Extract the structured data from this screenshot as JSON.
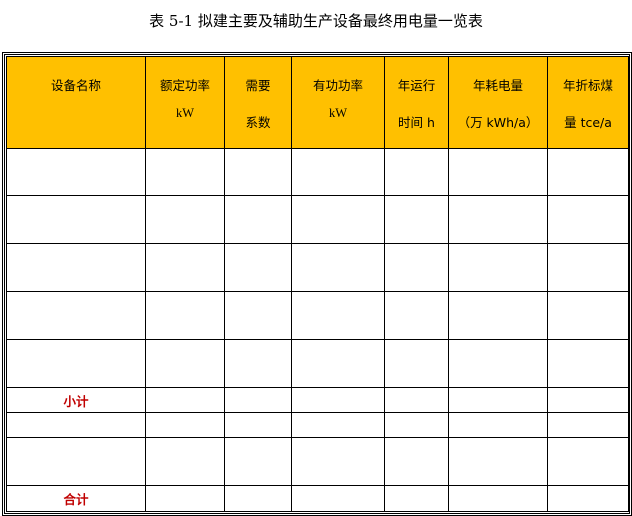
{
  "title": "表 5-1    拟建主要及辅助生产设备最终用电量一览表",
  "columns": [
    {
      "line1": "设备名称",
      "line2": ""
    },
    {
      "line1": "额定功率",
      "line2": "kW"
    },
    {
      "line1": "需要",
      "line2": "系数"
    },
    {
      "line1": "有功功率",
      "line2": "kW"
    },
    {
      "line1": "年运行",
      "line2": "时间 h"
    },
    {
      "line1": "年耗电量",
      "line2": "（万 kWh/a）"
    },
    {
      "line1": "年折标煤",
      "line2": "量 tce/a"
    }
  ],
  "rows": [
    "",
    "",
    "",
    "",
    "",
    "小计",
    "",
    "",
    "合计"
  ],
  "colors": {
    "header_bg": "#ffc000",
    "summary_text": "#c00000"
  }
}
